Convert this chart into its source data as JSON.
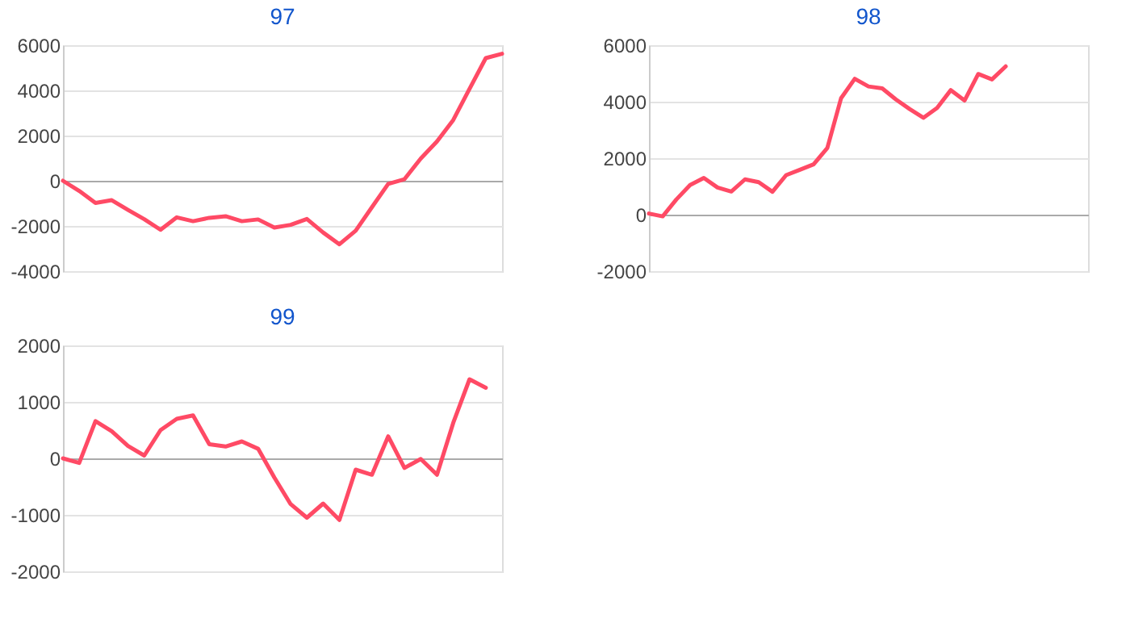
{
  "chart_data": [
    {
      "type": "line",
      "title": "97",
      "categories": [
        null,
        null,
        null,
        null,
        null,
        null,
        null,
        null,
        null,
        null,
        null,
        null,
        null,
        null,
        null,
        null,
        null,
        null,
        null,
        null,
        null,
        null,
        null,
        null,
        null,
        null,
        null,
        null
      ],
      "values": [
        0,
        -450,
        -980,
        -860,
        -1290,
        -1700,
        -2170,
        -1620,
        -1790,
        -1640,
        -1570,
        -1790,
        -1710,
        -2070,
        -1950,
        -1690,
        -2290,
        -2810,
        -2210,
        -1170,
        -140,
        70,
        980,
        1740,
        2690,
        4070,
        5430,
        5620
      ],
      "color": "#ff4a65",
      "ylim": [
        -4000,
        6000
      ],
      "yticks": [
        -4000,
        -2000,
        0,
        2000,
        4000,
        6000
      ],
      "grid": "y"
    },
    {
      "type": "line",
      "title": "98",
      "categories": [
        null,
        null,
        null,
        null,
        null,
        null,
        null,
        null,
        null,
        null,
        null,
        null,
        null,
        null,
        null,
        null,
        null,
        null,
        null,
        null,
        null,
        null,
        null,
        null,
        null,
        null,
        null,
        null,
        null,
        null,
        null,
        null,
        null
      ],
      "values": [
        40,
        -60,
        540,
        1050,
        1300,
        960,
        820,
        1250,
        1150,
        810,
        1400,
        1590,
        1780,
        2360,
        4120,
        4810,
        4540,
        4470,
        4080,
        3740,
        3430,
        3780,
        4410,
        4040,
        4980,
        4790,
        5250,
        null,
        null,
        null,
        null,
        null,
        null
      ],
      "color": "#ff4a65",
      "ylim": [
        -2000,
        6000
      ],
      "yticks": [
        -2000,
        0,
        2000,
        4000,
        6000
      ],
      "grid": "y"
    },
    {
      "type": "line",
      "title": "99",
      "categories": [
        null,
        null,
        null,
        null,
        null,
        null,
        null,
        null,
        null,
        null,
        null,
        null,
        null,
        null,
        null,
        null,
        null,
        null,
        null,
        null,
        null,
        null,
        null,
        null,
        null,
        null,
        null,
        null
      ],
      "values": [
        0,
        -80,
        660,
        480,
        220,
        50,
        500,
        700,
        760,
        250,
        210,
        300,
        170,
        -340,
        -810,
        -1050,
        -800,
        -1090,
        -200,
        -290,
        390,
        -170,
        -10,
        -290,
        630,
        1400,
        1250,
        null
      ],
      "color": "#ff4a65",
      "ylim": [
        -2000,
        2000
      ],
      "yticks": [
        -2000,
        -1000,
        0,
        1000,
        2000
      ],
      "grid": "y"
    }
  ]
}
